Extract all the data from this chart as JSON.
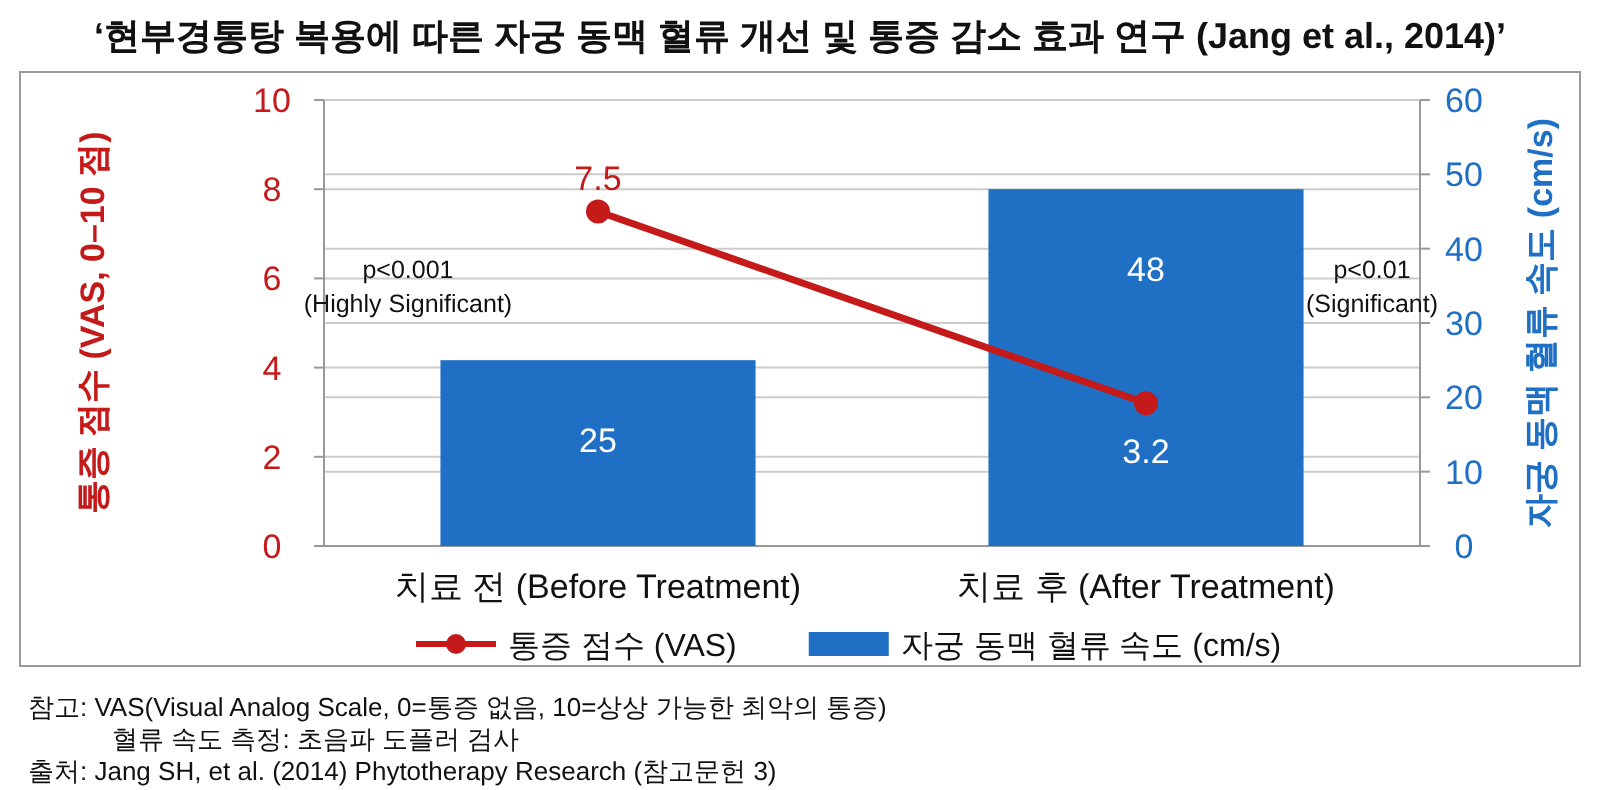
{
  "chart_data": {
    "type": "bar",
    "title": "‘현부경통탕 복용에 따른 자궁 동맥 혈류 개선 및 통증 감소 효과 연구 (Jang et al., 2014)’",
    "ylabel": "통증 점수 (VAS, 0–10 점)",
    "y2label": "자궁 동맥 혈류 속도 (cm/s)",
    "categories": [
      "치료 전 (Before Treatment)",
      "치료 후 (After Treatment)"
    ],
    "series": [
      {
        "name": "자궁 동맥 혈류 속도 (cm/s)",
        "axis": "y2",
        "color": "#1f6fc4",
        "values": [
          25,
          48
        ]
      },
      {
        "name": "통증 점수 (VAS)",
        "type": "line",
        "color": "#c41a1a",
        "values": [
          7.5,
          3.2
        ],
        "marker": "circle"
      }
    ],
    "ylim": [
      0,
      10
    ],
    "yticks": [
      0,
      2,
      4,
      6,
      8,
      10
    ],
    "y2lim": [
      0,
      60
    ],
    "y2ticks": [
      0,
      10,
      20,
      30,
      40,
      50,
      60
    ],
    "grid": true,
    "legend": "bottom",
    "data_labels": true,
    "annotations": [
      "p<0.001\n(Highly Significant)",
      "p<0.01\n(Significant)",
      "참고: VAS(Visual Analog Scale, 0=통증 없음, 10=상상 가능한 최악의 통증)\n       혈류 속도 측정: 초음파 도플러 검사",
      "출처: Jang SH, et al. (2014) Phytotherapy Research (참고문헌 3)"
    ]
  }
}
